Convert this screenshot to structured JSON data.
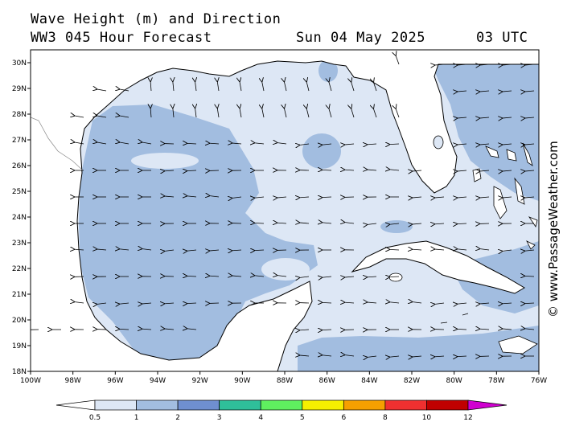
{
  "header": {
    "title": "Wave Height (m) and Direction",
    "subtitle": "WW3 045 Hour Forecast",
    "date": "Sun 04 May 2025",
    "time": "03 UTC"
  },
  "map": {
    "lon_range": [
      -100,
      -76
    ],
    "lat_range": [
      18,
      30.5
    ],
    "x_ticks": [
      "100W",
      "98W",
      "96W",
      "94W",
      "92W",
      "90W",
      "88W",
      "86W",
      "84W",
      "82W",
      "80W",
      "78W",
      "76W"
    ],
    "y_ticks": [
      "18N",
      "19N",
      "20N",
      "21N",
      "22N",
      "23N",
      "24N",
      "25N",
      "26N",
      "27N",
      "28N",
      "29N",
      "30N"
    ],
    "colors": {
      "land": "#ffffff",
      "band_0_5": "#dde7f5",
      "band_1": "#a2bde0",
      "coast": "#000000"
    }
  },
  "legend": {
    "labels": [
      "0.5",
      "1",
      "2",
      "3",
      "4",
      "5",
      "6",
      "8",
      "10",
      "12"
    ],
    "colors": [
      "#ffffff",
      "#dde7f5",
      "#a2bde0",
      "#6f8fd0",
      "#2fbf9a",
      "#5fef5f",
      "#f5ef00",
      "#f5a000",
      "#f03030",
      "#c00000",
      "#d000d0"
    ]
  },
  "watermark": "© www.PassageWeather.com"
}
